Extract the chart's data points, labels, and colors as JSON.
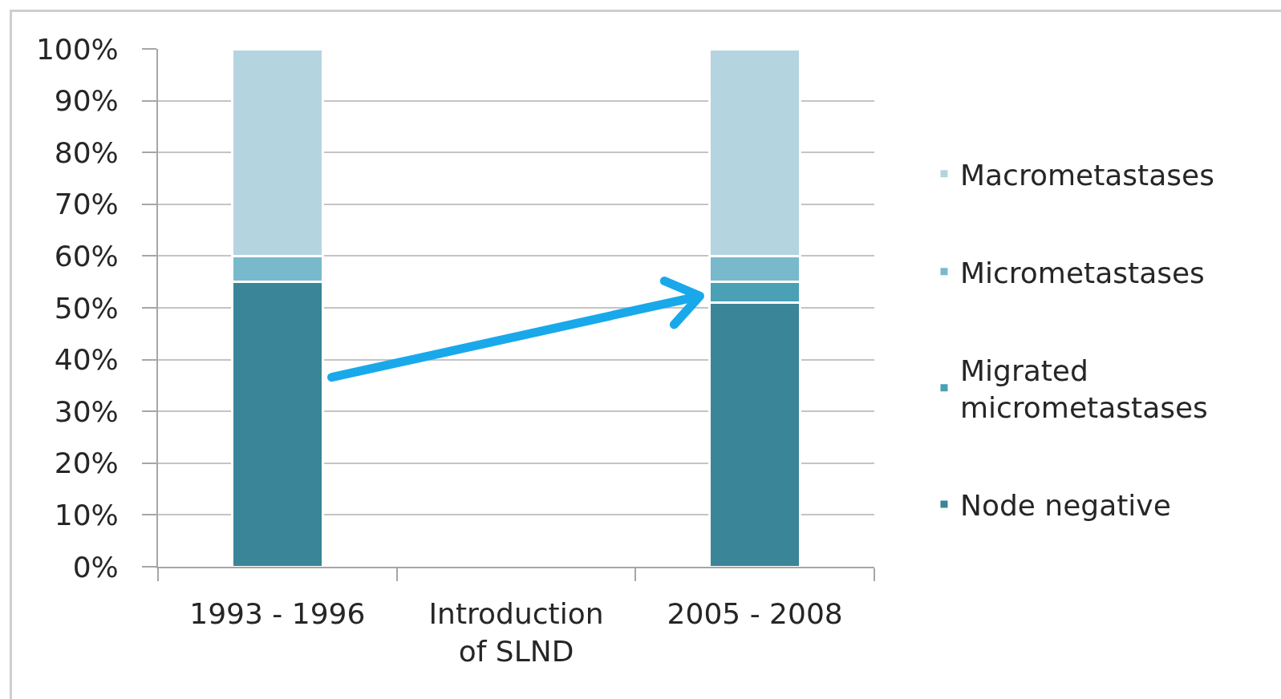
{
  "chart_data": {
    "type": "bar",
    "stacked": true,
    "categories": [
      "1993 - 1996",
      "Introduction of SLND",
      "2005 - 2008"
    ],
    "series": [
      {
        "name": "Node negative",
        "color": "#3a8597",
        "values": [
          55,
          null,
          51
        ]
      },
      {
        "name": "Migrated micrometastases",
        "color": "#4aa0b5",
        "values": [
          0,
          null,
          4
        ]
      },
      {
        "name": "Micrometastases",
        "color": "#79b9cc",
        "values": [
          5,
          null,
          5
        ]
      },
      {
        "name": "Macrometastases",
        "color": "#b4d4df",
        "values": [
          40,
          null,
          40
        ]
      }
    ],
    "ylim": [
      0,
      100
    ],
    "yticks": [
      {
        "value": 0,
        "label": "0%"
      },
      {
        "value": 10,
        "label": "10%"
      },
      {
        "value": 20,
        "label": "20%"
      },
      {
        "value": 30,
        "label": "30%"
      },
      {
        "value": 40,
        "label": "40%"
      },
      {
        "value": 50,
        "label": "50%"
      },
      {
        "value": 60,
        "label": "60%"
      },
      {
        "value": 70,
        "label": "70%"
      },
      {
        "value": 80,
        "label": "80%"
      },
      {
        "value": 90,
        "label": "90%"
      },
      {
        "value": 100,
        "label": "100%"
      }
    ],
    "grid": "y",
    "legend": "right"
  }
}
